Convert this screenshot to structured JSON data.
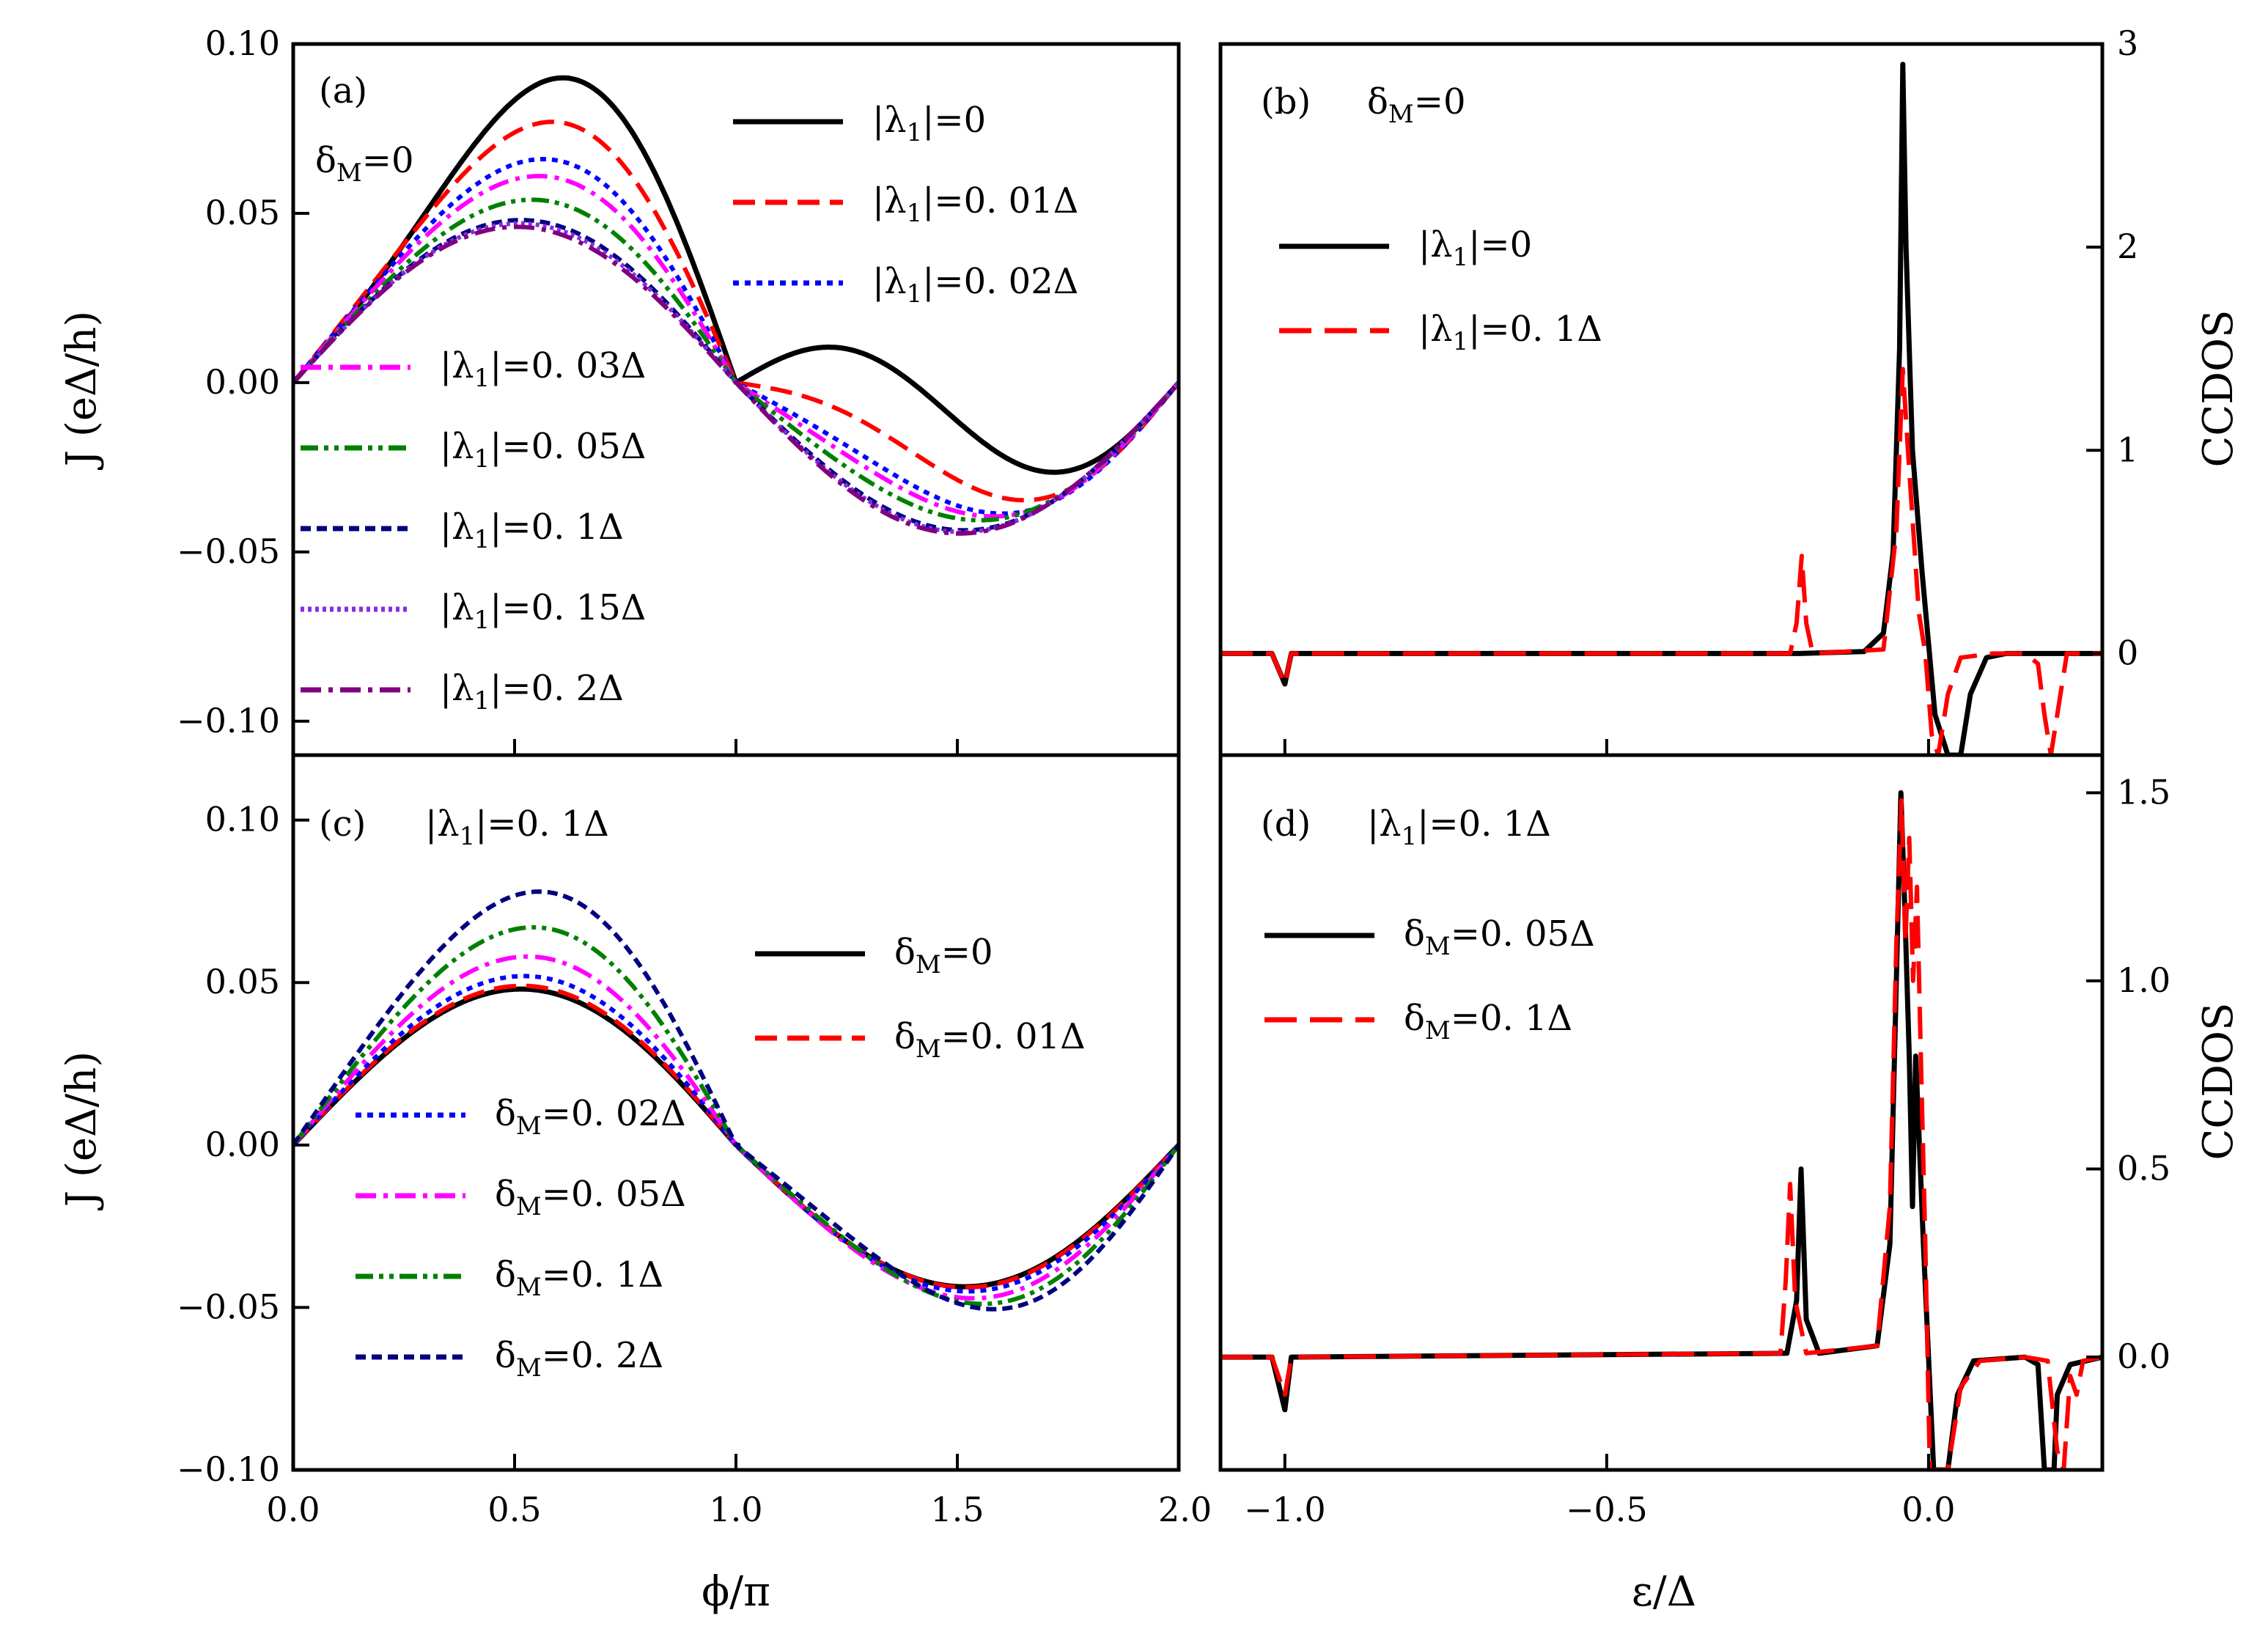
{
  "figure": {
    "x_label_left": "ϕ/π",
    "x_label_right": "ε/Δ",
    "y_label_left": "J (eΔ/h)",
    "y_label_right": "CCDOS"
  },
  "chart_data": [
    {
      "id": "a",
      "type": "line",
      "panel_label": "(a)",
      "annotation": {
        "main": "δ",
        "sub": "M",
        "tail": "=0"
      },
      "xlabel": "ϕ/π",
      "ylabel": "J (eΔ/h)",
      "xlim": [
        0,
        2
      ],
      "ylim": [
        -0.11,
        0.1
      ],
      "x_ticks": [
        0,
        0.5,
        1,
        1.5,
        2
      ],
      "x_tick_labels": [
        "0.0",
        "0.5",
        "1.0",
        "1.5",
        "2.0"
      ],
      "y_ticks": [
        -0.1,
        -0.05,
        0,
        0.05,
        0.1
      ],
      "y_tick_labels": [
        "−0.10",
        "−0.05",
        "0.00",
        "0.05",
        "0.10"
      ],
      "series": [
        {
          "name": "|λ1|=0",
          "legend_main": "|λ",
          "legend_sub": "1",
          "legend_tail": "|=0",
          "color": "#000000",
          "dash": "solid",
          "amplitude": 0.09,
          "skew": 0.95
        },
        {
          "name": "|λ1|=0.01Δ",
          "legend_main": "|λ",
          "legend_sub": "1",
          "legend_tail": "|=0. 01Δ",
          "color": "#ff0000",
          "dash": "dash",
          "amplitude": 0.077,
          "skew": 0.55
        },
        {
          "name": "|λ1|=0.02Δ",
          "legend_main": "|λ",
          "legend_sub": "1",
          "legend_tail": "|=0. 02Δ",
          "color": "#0000ff",
          "dash": "dot",
          "amplitude": 0.066,
          "skew": 0.35
        },
        {
          "name": "|λ1|=0.03Δ",
          "legend_main": "|λ",
          "legend_sub": "1",
          "legend_tail": "|=0. 03Δ",
          "color": "#ff00ff",
          "dash": "dashdot",
          "amplitude": 0.061,
          "skew": 0.28
        },
        {
          "name": "|λ1|=0.05Δ",
          "legend_main": "|λ",
          "legend_sub": "1",
          "legend_tail": "|=0. 05Δ",
          "color": "#008000",
          "dash": "dashdotdot",
          "amplitude": 0.054,
          "skew": 0.18
        },
        {
          "name": "|λ1|=0.1Δ",
          "legend_main": "|λ",
          "legend_sub": "1",
          "legend_tail": "|=0. 1Δ",
          "color": "#000080",
          "dash": "shortdash",
          "amplitude": 0.048,
          "skew": 0.06
        },
        {
          "name": "|λ1|=0.15Δ",
          "legend_main": "|λ",
          "legend_sub": "1",
          "legend_tail": "|=0. 15Δ",
          "color": "#8a2be2",
          "dash": "shortdot",
          "amplitude": 0.047,
          "skew": 0.04
        },
        {
          "name": "|λ1|=0.2Δ",
          "legend_main": "|λ",
          "legend_sub": "1",
          "legend_tail": "|=0. 2Δ",
          "color": "#800080",
          "dash": "dashdot",
          "amplitude": 0.046,
          "skew": 0.02
        }
      ]
    },
    {
      "id": "b",
      "type": "line",
      "panel_label": "(b)",
      "annotation": {
        "main": "δ",
        "sub": "M",
        "tail": "=0"
      },
      "xlabel": "ε/Δ",
      "ylabel": "CCDOS",
      "xlim": [
        -1.1,
        0.27
      ],
      "ylim": [
        -0.5,
        3
      ],
      "x_ticks": [
        -1,
        -0.5,
        0
      ],
      "y_ticks": [
        0,
        1,
        2,
        3
      ],
      "y_tick_labels": [
        "0",
        "1",
        "2",
        "3"
      ],
      "series": [
        {
          "name": "|λ1|=0",
          "legend_main": "|λ",
          "legend_sub": "1",
          "legend_tail": "|=0",
          "color": "#000000",
          "dash": "solid",
          "points": [
            [
              -1.1,
              0
            ],
            [
              -1.02,
              0
            ],
            [
              -1.0,
              -0.15
            ],
            [
              -0.99,
              0
            ],
            [
              -0.2,
              0
            ],
            [
              -0.1,
              0.01
            ],
            [
              -0.07,
              0.1
            ],
            [
              -0.055,
              0.5
            ],
            [
              -0.045,
              1.5
            ],
            [
              -0.04,
              2.9
            ],
            [
              -0.035,
              2.0
            ],
            [
              -0.025,
              1.0
            ],
            [
              -0.01,
              0.4
            ],
            [
              0.0,
              0.05
            ],
            [
              0.01,
              -0.3
            ],
            [
              0.03,
              -0.5
            ],
            [
              0.05,
              -0.5
            ],
            [
              0.065,
              -0.2
            ],
            [
              0.09,
              -0.02
            ],
            [
              0.12,
              0
            ],
            [
              0.27,
              0
            ]
          ]
        },
        {
          "name": "|λ1|=0.1Δ",
          "legend_main": "|λ",
          "legend_sub": "1",
          "legend_tail": "|=0. 1Δ",
          "color": "#ff0000",
          "dash": "longdash",
          "points": [
            [
              -1.1,
              0
            ],
            [
              -1.02,
              0
            ],
            [
              -1.0,
              -0.15
            ],
            [
              -0.99,
              0
            ],
            [
              -0.215,
              0
            ],
            [
              -0.205,
              0.15
            ],
            [
              -0.197,
              0.48
            ],
            [
              -0.19,
              0.15
            ],
            [
              -0.18,
              0
            ],
            [
              -0.07,
              0.02
            ],
            [
              -0.05,
              0.6
            ],
            [
              -0.04,
              1.4
            ],
            [
              -0.03,
              0.9
            ],
            [
              -0.015,
              0.2
            ],
            [
              -0.005,
              0
            ],
            [
              0.005,
              -0.4
            ],
            [
              0.015,
              -0.5
            ],
            [
              0.03,
              -0.2
            ],
            [
              0.05,
              -0.02
            ],
            [
              0.1,
              0
            ],
            [
              0.15,
              0
            ],
            [
              0.17,
              -0.05
            ],
            [
              0.18,
              -0.3
            ],
            [
              0.19,
              -0.5
            ],
            [
              0.205,
              -0.2
            ],
            [
              0.215,
              0
            ],
            [
              0.27,
              0
            ]
          ]
        }
      ]
    },
    {
      "id": "c",
      "type": "line",
      "panel_label": "(c)",
      "annotation": {
        "main": "|λ",
        "sub": "1",
        "tail": "|=0. 1Δ"
      },
      "xlabel": "ϕ/π",
      "ylabel": "J (eΔ/h)",
      "xlim": [
        0,
        2
      ],
      "ylim": [
        -0.1,
        0.12
      ],
      "x_ticks": [
        0,
        0.5,
        1,
        1.5,
        2
      ],
      "x_tick_labels": [
        "0.0",
        "0.5",
        "1.0",
        "1.5",
        "2.0"
      ],
      "y_ticks": [
        -0.1,
        -0.05,
        0,
        0.05,
        0.1
      ],
      "y_tick_labels": [
        "−0.10",
        "−0.05",
        "0.00",
        "0.05",
        "0.10"
      ],
      "series": [
        {
          "name": "δM=0",
          "legend_main": "δ",
          "legend_sub": "M",
          "legend_tail": "=0",
          "color": "#000000",
          "dash": "solid",
          "amplitude": 0.048,
          "skew": 0.06
        },
        {
          "name": "δM=0.01Δ",
          "legend_main": "δ",
          "legend_sub": "M",
          "legend_tail": "=0. 01Δ",
          "color": "#ff0000",
          "dash": "dash",
          "amplitude": 0.049,
          "skew": 0.07
        },
        {
          "name": "δM=0.02Δ",
          "legend_main": "δ",
          "legend_sub": "M",
          "legend_tail": "=0. 02Δ",
          "color": "#0000ff",
          "dash": "dot",
          "amplitude": 0.052,
          "skew": 0.09
        },
        {
          "name": "δM=0.05Δ",
          "legend_main": "δ",
          "legend_sub": "M",
          "legend_tail": "=0. 05Δ",
          "color": "#ff00ff",
          "dash": "dashdot",
          "amplitude": 0.058,
          "skew": 0.13
        },
        {
          "name": "δM=0.1Δ",
          "legend_main": "δ",
          "legend_sub": "M",
          "legend_tail": "=0. 1Δ",
          "color": "#008000",
          "dash": "dashdotdot",
          "amplitude": 0.067,
          "skew": 0.2
        },
        {
          "name": "δM=0.2Δ",
          "legend_main": "δ",
          "legend_sub": "M",
          "legend_tail": "=0. 2Δ",
          "color": "#000080",
          "dash": "shortdash",
          "amplitude": 0.078,
          "skew": 0.28
        }
      ]
    },
    {
      "id": "d",
      "type": "line",
      "panel_label": "(d)",
      "annotation": {
        "main": "|λ",
        "sub": "1",
        "tail": "|=0. 1Δ"
      },
      "xlabel": "ε/Δ",
      "ylabel": "CCDOS",
      "xlim": [
        -1.1,
        0.27
      ],
      "ylim": [
        -0.3,
        1.6
      ],
      "x_ticks": [
        -1,
        -0.5,
        0
      ],
      "x_tick_labels": [
        "−1.0",
        "−0.5",
        "0.0"
      ],
      "y_ticks": [
        0,
        0.5,
        1,
        1.5
      ],
      "y_tick_labels": [
        "0.0",
        "0.5",
        "1.0",
        "1.5"
      ],
      "series": [
        {
          "name": "δM=0.05Δ",
          "legend_main": "δ",
          "legend_sub": "M",
          "legend_tail": "=0. 05Δ",
          "color": "#000000",
          "dash": "solid",
          "points": [
            [
              -1.1,
              0
            ],
            [
              -1.02,
              0
            ],
            [
              -1.0,
              -0.14
            ],
            [
              -0.99,
              0
            ],
            [
              -0.22,
              0.01
            ],
            [
              -0.205,
              0.15
            ],
            [
              -0.198,
              0.5
            ],
            [
              -0.19,
              0.1
            ],
            [
              -0.17,
              0.01
            ],
            [
              -0.08,
              0.03
            ],
            [
              -0.06,
              0.3
            ],
            [
              -0.05,
              1.0
            ],
            [
              -0.043,
              1.5
            ],
            [
              -0.037,
              1.2
            ],
            [
              -0.03,
              0.8
            ],
            [
              -0.025,
              0.4
            ],
            [
              -0.02,
              0.8
            ],
            [
              -0.015,
              0.6
            ],
            [
              -0.008,
              0.3
            ],
            [
              0.0,
              0
            ],
            [
              0.008,
              -0.3
            ],
            [
              0.03,
              -0.3
            ],
            [
              0.045,
              -0.1
            ],
            [
              0.07,
              -0.01
            ],
            [
              0.15,
              0
            ],
            [
              0.17,
              -0.02
            ],
            [
              0.18,
              -0.3
            ],
            [
              0.195,
              -0.3
            ],
            [
              0.2,
              -0.1
            ],
            [
              0.22,
              -0.02
            ],
            [
              0.27,
              0
            ]
          ]
        },
        {
          "name": "δM=0.1Δ",
          "legend_main": "δ",
          "legend_sub": "M",
          "legend_tail": "=0. 1Δ",
          "color": "#ff0000",
          "dash": "longdash",
          "points": [
            [
              -1.1,
              0
            ],
            [
              -1.02,
              0
            ],
            [
              -1.0,
              -0.1
            ],
            [
              -0.99,
              0
            ],
            [
              -0.23,
              0.01
            ],
            [
              -0.222,
              0.2
            ],
            [
              -0.215,
              0.46
            ],
            [
              -0.207,
              0.15
            ],
            [
              -0.19,
              0.01
            ],
            [
              -0.08,
              0.03
            ],
            [
              -0.06,
              0.4
            ],
            [
              -0.05,
              1.1
            ],
            [
              -0.042,
              1.48
            ],
            [
              -0.036,
              1.1
            ],
            [
              -0.03,
              1.38
            ],
            [
              -0.024,
              1.0
            ],
            [
              -0.018,
              1.25
            ],
            [
              -0.012,
              0.8
            ],
            [
              -0.005,
              0.3
            ],
            [
              0.002,
              -0.3
            ],
            [
              0.03,
              -0.3
            ],
            [
              0.05,
              -0.08
            ],
            [
              0.08,
              -0.01
            ],
            [
              0.15,
              0
            ],
            [
              0.185,
              -0.01
            ],
            [
              0.2,
              -0.25
            ],
            [
              0.21,
              -0.3
            ],
            [
              0.22,
              -0.05
            ],
            [
              0.23,
              -0.1
            ],
            [
              0.24,
              -0.01
            ],
            [
              0.27,
              0
            ]
          ]
        }
      ]
    }
  ]
}
